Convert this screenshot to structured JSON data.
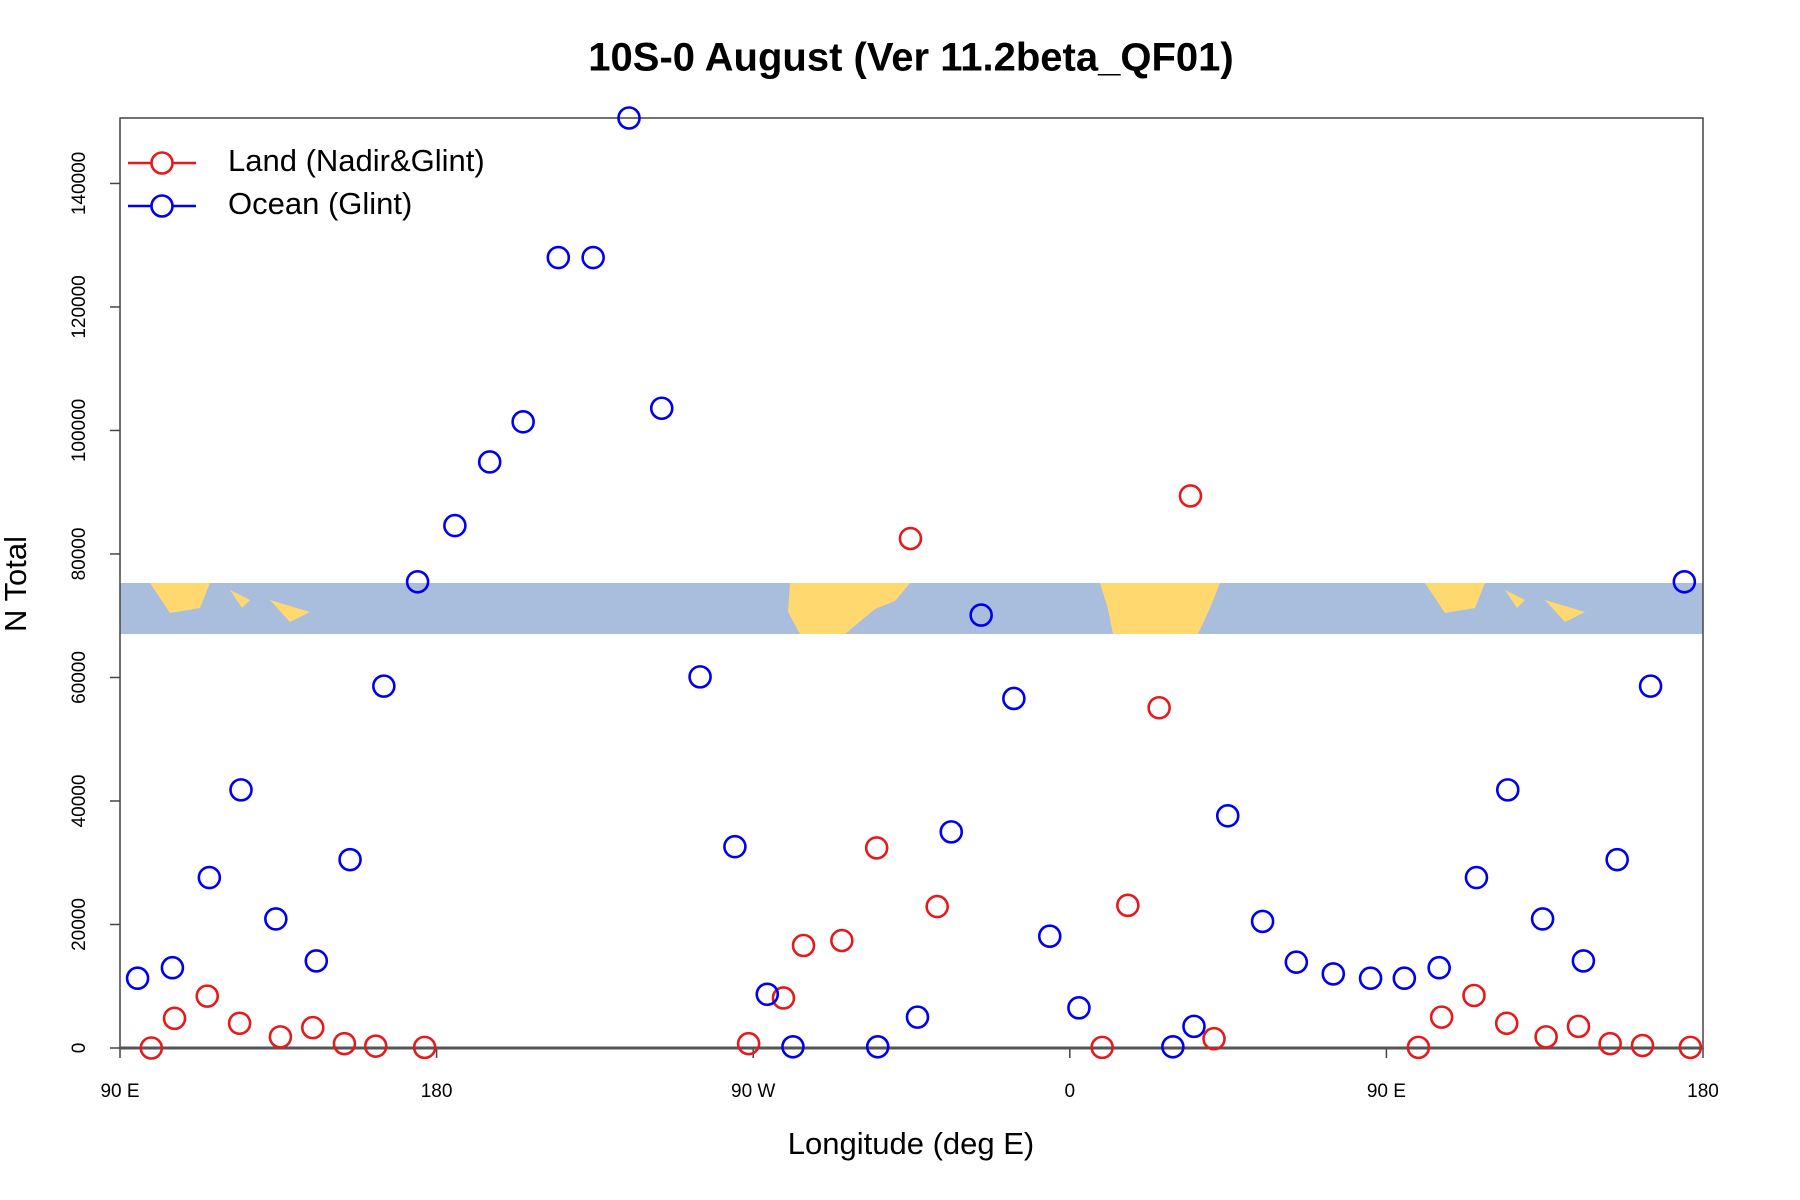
{
  "chart_data": {
    "type": "scatter",
    "title": "10S-0 August (Ver 11.2beta_QF01)",
    "x_label": "Longitude (deg E)",
    "y_label": "N Total",
    "xlim": [
      90,
      540
    ],
    "ylim": [
      0,
      150600
    ],
    "xticks": [
      {
        "value": 90,
        "label": "90 E"
      },
      180,
      {
        "value": 270,
        "label": "90 W"
      },
      {
        "value": 360,
        "label": "0"
      },
      {
        "value": 450,
        "label": "90 E"
      },
      {
        "value": 540,
        "label": "180"
      }
    ],
    "yticks": [
      0,
      20000,
      40000,
      60000,
      80000,
      100000,
      120000,
      140000
    ],
    "legend": "top-left",
    "series": [
      {
        "name": "Land (Nadir&Glint)",
        "color": "#e41a1c",
        "x": [
          98.9,
          105.5,
          114.8,
          124.0,
          135.6,
          144.8,
          153.8,
          162.7,
          176.6,
          268.7,
          278.6,
          284.3,
          295.2,
          305.1,
          314.7,
          322.3,
          369.2,
          376.5,
          385.4,
          394.3,
          401.0,
          459.1,
          465.7,
          474.9,
          484.2,
          495.4,
          504.6,
          513.6,
          522.8,
          536.4
        ],
        "values": [
          0,
          4800,
          8400,
          4000,
          1800,
          3300,
          700,
          300,
          100,
          700,
          8100,
          16600,
          17400,
          32400,
          82500,
          22900,
          100,
          23100,
          55100,
          89400,
          1500,
          100,
          5000,
          8500,
          4000,
          1800,
          3500,
          700,
          400,
          100
        ]
      },
      {
        "name": "Ocean (Glint)",
        "color": "#0000ee",
        "x": [
          95.0,
          104.9,
          115.4,
          124.4,
          134.3,
          145.8,
          155.4,
          165.0,
          174.6,
          185.2,
          195.1,
          204.6,
          214.6,
          224.5,
          234.7,
          244.0,
          254.9,
          264.8,
          274.0,
          281.3,
          305.4,
          316.7,
          326.3,
          334.8,
          344.1,
          354.3,
          362.6,
          389.3,
          395.3,
          404.9,
          414.8,
          424.4,
          434.9,
          445.5,
          455.1,
          465.0,
          475.6,
          484.5,
          494.4,
          506.0,
          515.6,
          525.1,
          534.7
        ],
        "values": [
          11300,
          13000,
          27600,
          41800,
          20900,
          14100,
          30500,
          58600,
          75500,
          84600,
          94900,
          101400,
          128000,
          128000,
          150600,
          103600,
          60100,
          32600,
          8700,
          200,
          200,
          5000,
          35000,
          70100,
          56600,
          18100,
          6500,
          200,
          3500,
          37600,
          20500,
          13900,
          12000,
          11300,
          11300,
          13000,
          27600,
          41800,
          20900,
          14100,
          30500,
          58600,
          75500
        ]
      }
    ]
  }
}
